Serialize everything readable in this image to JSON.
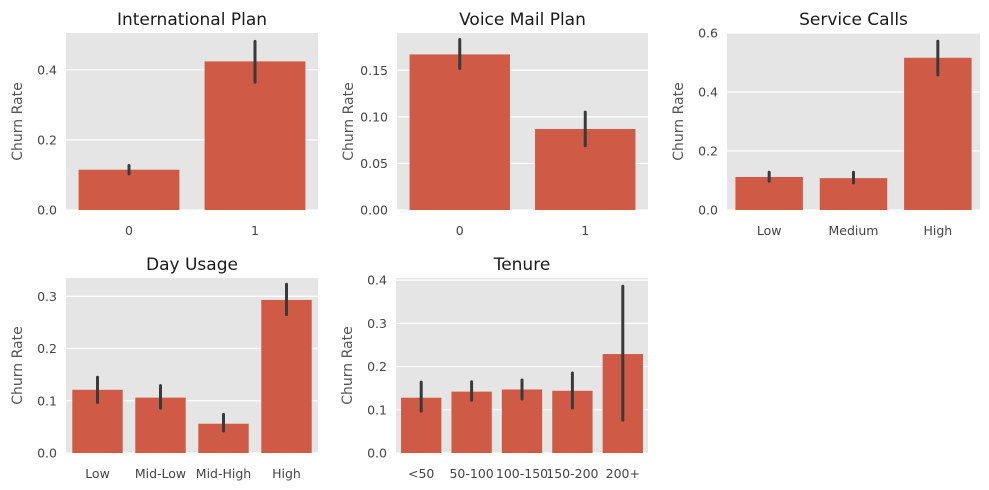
{
  "colors": {
    "bar": "#cf5a45",
    "plot_bg": "#e5e5e5",
    "grid": "#ffffff",
    "error_bar": "#3a3a3a"
  },
  "chart_data": [
    {
      "type": "bar",
      "title": "International Plan",
      "ylabel": "Churn Rate",
      "xlabel": "",
      "categories": [
        "0",
        "1"
      ],
      "values": [
        0.115,
        0.424
      ],
      "ci": [
        [
          0.103,
          0.127
        ],
        [
          0.365,
          0.481
        ]
      ],
      "ylim": [
        0,
        0.505
      ],
      "yticks": [
        0.0,
        0.2,
        0.4
      ],
      "ytick_labels": [
        "0.0",
        "0.2",
        "0.4"
      ],
      "grid": true
    },
    {
      "type": "bar",
      "title": "Voice Mail Plan",
      "ylabel": "Churn Rate",
      "xlabel": "",
      "categories": [
        "0",
        "1"
      ],
      "values": [
        0.167,
        0.087
      ],
      "ci": [
        [
          0.152,
          0.183
        ],
        [
          0.069,
          0.105
        ]
      ],
      "ylim": [
        0,
        0.19
      ],
      "yticks": [
        0.0,
        0.05,
        0.1,
        0.15
      ],
      "ytick_labels": [
        "0.00",
        "0.05",
        "0.10",
        "0.15"
      ],
      "grid": true
    },
    {
      "type": "bar",
      "title": "Service Calls",
      "ylabel": "Churn Rate",
      "xlabel": "",
      "categories": [
        "Low",
        "Medium",
        "High"
      ],
      "values": [
        0.112,
        0.108,
        0.516
      ],
      "ci": [
        [
          0.098,
          0.128
        ],
        [
          0.092,
          0.128
        ],
        [
          0.458,
          0.572
        ]
      ],
      "ylim": [
        0,
        0.6
      ],
      "yticks": [
        0.0,
        0.2,
        0.4,
        0.6
      ],
      "ytick_labels": [
        "0.0",
        "0.2",
        "0.4",
        "0.6"
      ],
      "grid": true
    },
    {
      "type": "bar",
      "title": "Day Usage",
      "ylabel": "Churn Rate",
      "xlabel": "",
      "categories": [
        "Low",
        "Mid-Low",
        "Mid-High",
        "High"
      ],
      "values": [
        0.121,
        0.106,
        0.056,
        0.293
      ],
      "ci": [
        [
          0.097,
          0.145
        ],
        [
          0.086,
          0.129
        ],
        [
          0.042,
          0.074
        ],
        [
          0.265,
          0.323
        ]
      ],
      "ylim": [
        0,
        0.335
      ],
      "yticks": [
        0.0,
        0.1,
        0.2,
        0.3
      ],
      "ytick_labels": [
        "0.0",
        "0.1",
        "0.2",
        "0.3"
      ],
      "grid": true
    },
    {
      "type": "bar",
      "title": "Tenure",
      "ylabel": "Churn Rate",
      "xlabel": "",
      "categories": [
        "<50",
        "50-100",
        "100-150",
        "150-200",
        "200+"
      ],
      "values": [
        0.128,
        0.142,
        0.147,
        0.144,
        0.229
      ],
      "ci": [
        [
          0.097,
          0.164
        ],
        [
          0.122,
          0.165
        ],
        [
          0.125,
          0.169
        ],
        [
          0.104,
          0.185
        ],
        [
          0.076,
          0.386
        ]
      ],
      "ylim": [
        0,
        0.405
      ],
      "yticks": [
        0.0,
        0.1,
        0.2,
        0.3,
        0.4
      ],
      "ytick_labels": [
        "0.0",
        "0.1",
        "0.2",
        "0.3",
        "0.4"
      ],
      "grid": true
    }
  ]
}
